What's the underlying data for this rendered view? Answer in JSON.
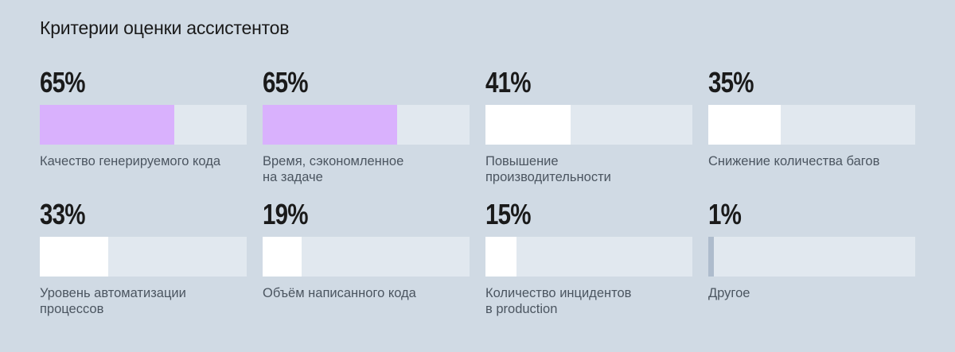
{
  "title": "Критерии оценки ассистентов",
  "colors": {
    "background": "#d0dae4",
    "track": "#e1e8ef",
    "highlight": "#d9b1fd",
    "fill": "#ffffff",
    "minor": "#aebccd"
  },
  "items": [
    {
      "value": "65%",
      "pct": 65,
      "label": "Качество генерируемого кода",
      "color": "#d9b1fd"
    },
    {
      "value": "65%",
      "pct": 65,
      "label": "Время, сэкономленное\nна задаче",
      "color": "#d9b1fd"
    },
    {
      "value": "41%",
      "pct": 41,
      "label": "Повышение\nпроизводительности",
      "color": "#ffffff"
    },
    {
      "value": "35%",
      "pct": 35,
      "label": "Снижение количества багов",
      "color": "#ffffff"
    },
    {
      "value": "33%",
      "pct": 33,
      "label": "Уровень автоматизации\nпроцессов",
      "color": "#ffffff"
    },
    {
      "value": "19%",
      "pct": 19,
      "label": "Объём написанного кода",
      "color": "#ffffff"
    },
    {
      "value": "15%",
      "pct": 15,
      "label": "Количество инцидентов\nв production",
      "color": "#ffffff"
    },
    {
      "value": "1%",
      "pct": 1,
      "label": "Другое",
      "color": "#aebccd"
    }
  ],
  "chart_data": {
    "type": "bar",
    "title": "Критерии оценки ассистентов",
    "categories": [
      "Качество генерируемого кода",
      "Время, сэкономленное на задаче",
      "Повышение производительности",
      "Снижение количества багов",
      "Уровень автоматизации процессов",
      "Объём написанного кода",
      "Количество инцидентов в production",
      "Другое"
    ],
    "values": [
      65,
      65,
      41,
      35,
      33,
      19,
      15,
      1
    ],
    "unit": "%",
    "xlabel": "",
    "ylabel": "",
    "ylim": [
      0,
      100
    ],
    "orientation": "horizontal",
    "grid": false,
    "legend": null
  }
}
